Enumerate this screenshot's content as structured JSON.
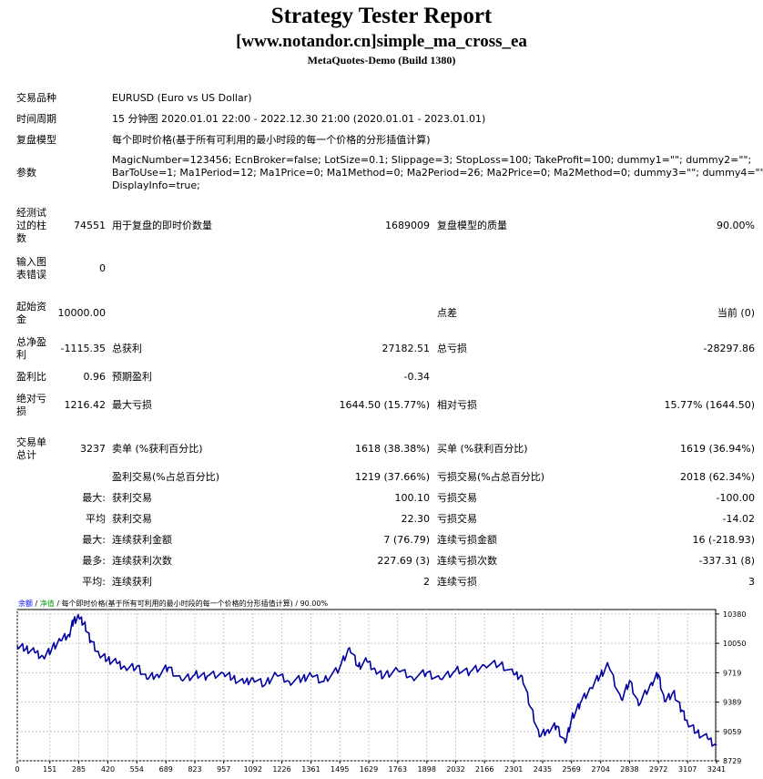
{
  "header": {
    "title": "Strategy Tester Report",
    "subtitle": "[www.notandor.cn]simple_ma_cross_ea",
    "build": "MetaQuotes-Demo (Build 1380)"
  },
  "settings": {
    "symbol_label": "交易品种",
    "symbol_value": "EURUSD (Euro vs US Dollar)",
    "period_label": "时间周期",
    "period_value": "15 分钟图 2020.01.01 22:00 - 2022.12.30 21:00 (2020.01.01 - 2023.01.01)",
    "model_label": "复盘模型",
    "model_value": "每个即时价格(基于所有可利用的最小时段的每一个价格的分形插值计算)",
    "params_label": "参数",
    "params_line1": "MagicNumber=123456; EcnBroker=false; LotSize=0.1; Slippage=3; StopLoss=100; TakeProfit=100; dummy1=\"\"; dummy2=\"\";",
    "params_line2": "BarToUse=1; Ma1Period=12; Ma1Price=0; Ma1Method=0; Ma2Period=26; Ma2Price=0; Ma2Method=0; dummy3=\"\"; dummy4=\"\";",
    "params_line3": "DisplayInfo=true;"
  },
  "stats": {
    "bars_label": "经测试过的柱数",
    "bars_value": "74551",
    "ticks_label": "用于复盘的即时价数量",
    "ticks_value": "1689009",
    "quality_label": "复盘模型的质量",
    "quality_value": "90.00%",
    "errors_label": "输入图表错误",
    "errors_value": "0",
    "deposit_label": "起始资金",
    "deposit_value": "10000.00",
    "spread_label": "点差",
    "spread_value": "当前 (0)",
    "net_label": "总净盈利",
    "net_value": "-1115.35",
    "gross_profit_label": "总获利",
    "gross_profit_value": "27182.51",
    "gross_loss_label": "总亏损",
    "gross_loss_value": "-28297.86",
    "pf_label": "盈利比",
    "pf_value": "0.96",
    "payoff_label": "预期盈利",
    "payoff_value": "-0.34",
    "abs_dd_label": "绝对亏损",
    "abs_dd_value": "1216.42",
    "max_dd_label": "最大亏损",
    "max_dd_value": "1644.50 (15.77%)",
    "rel_dd_label": "相对亏损",
    "rel_dd_value": "15.77% (1644.50)",
    "trades_label": "交易单总计",
    "trades_value": "3237",
    "short_label": "卖单 (%获利百分比)",
    "short_value": "1618 (38.38%)",
    "long_label": "买单 (%获利百分比)",
    "long_value": "1619 (36.94%)",
    "profit_trades_label": "盈利交易(%占总百分比)",
    "profit_trades_value": "1219 (37.66%)",
    "loss_trades_label": "亏损交易(%占总百分比)",
    "loss_trades_value": "2018 (62.34%)",
    "largest_prefix": "最大:",
    "largest_profit_label": "获利交易",
    "largest_profit_value": "100.10",
    "largest_loss_label": "亏损交易",
    "largest_loss_value": "-100.00",
    "avg_prefix": "平均",
    "avg_profit_label": "获利交易",
    "avg_profit_value": "22.30",
    "avg_loss_label": "亏损交易",
    "avg_loss_value": "-14.02",
    "max_cons_prefix": "最大:",
    "max_cons_wins_label": "连续获利金额",
    "max_cons_wins_value": "7 (76.79)",
    "max_cons_losses_label": "连续亏损金额",
    "max_cons_losses_value": "16 (-218.93)",
    "most_prefix": "最多:",
    "max_cons_profit_label": "连续获利次数",
    "max_cons_profit_value": "227.69 (3)",
    "max_cons_loss_label": "连续亏损次数",
    "max_cons_loss_value": "-337.31 (8)",
    "avg_cons_prefix": "平均:",
    "avg_cons_wins_label": "连续获利",
    "avg_cons_wins_value": "2",
    "avg_cons_losses_label": "连续亏损",
    "avg_cons_losses_value": "3"
  },
  "chart_legend": {
    "balance": "余额",
    "sep1": " / ",
    "equity": "净值",
    "rest": " / 每个即时价格(基于所有可利用的最小时段的每一个价格的分形插值计算) / 90.00%"
  },
  "colors": {
    "line": "#0000a0",
    "balance_label": "#0000ff",
    "equity_label": "#00a000",
    "grid": "#c8c8c8"
  },
  "chart_data": {
    "type": "line",
    "xlim": [
      0,
      3237
    ],
    "ylim": [
      8730,
      10430
    ],
    "x_ticks": [
      "0",
      "151",
      "285",
      "420",
      "554",
      "689",
      "823",
      "957",
      "1092",
      "1226",
      "1361",
      "1495",
      "1629",
      "1763",
      "1898",
      "2032",
      "2166",
      "2301",
      "2435",
      "2569",
      "2704",
      "2838",
      "2972",
      "3107",
      "3241"
    ],
    "y_ticks": [
      "10380",
      "10050",
      "9719",
      "9389",
      "9059",
      "8729"
    ],
    "series": [
      {
        "x": [
          0,
          40,
          80,
          120,
          160,
          200,
          240,
          260,
          285,
          310,
          340,
          380,
          420,
          460,
          500,
          554,
          600,
          650,
          700,
          760,
          823,
          880,
          957,
          1000,
          1050,
          1092,
          1150,
          1200,
          1260,
          1320,
          1361,
          1420,
          1495,
          1540,
          1580,
          1620,
          1660,
          1700,
          1763,
          1830,
          1898,
          1960,
          2032,
          2100,
          2166,
          2240,
          2301,
          2340,
          2380,
          2420,
          2460,
          2500,
          2540,
          2569,
          2610,
          2660,
          2704,
          2740,
          2800,
          2838,
          2880,
          2940,
          2972,
          3000,
          3040,
          3080,
          3107,
          3150,
          3200,
          3241
        ],
        "y": [
          10020,
          9990,
          9950,
          9900,
          9990,
          10080,
          10150,
          10300,
          10350,
          10270,
          10080,
          9920,
          9870,
          9830,
          9780,
          9790,
          9650,
          9700,
          9780,
          9640,
          9700,
          9680,
          9710,
          9660,
          9600,
          9660,
          9590,
          9700,
          9620,
          9650,
          9700,
          9620,
          9780,
          10000,
          9790,
          9850,
          9750,
          9680,
          9750,
          9670,
          9720,
          9650,
          9750,
          9730,
          9800,
          9820,
          9700,
          9680,
          9330,
          9000,
          9080,
          9120,
          8930,
          9200,
          9380,
          9550,
          9700,
          9800,
          9420,
          9630,
          9350,
          9610,
          9700,
          9400,
          9500,
          9300,
          9150,
          9050,
          8980,
          8900
        ]
      }
    ]
  }
}
